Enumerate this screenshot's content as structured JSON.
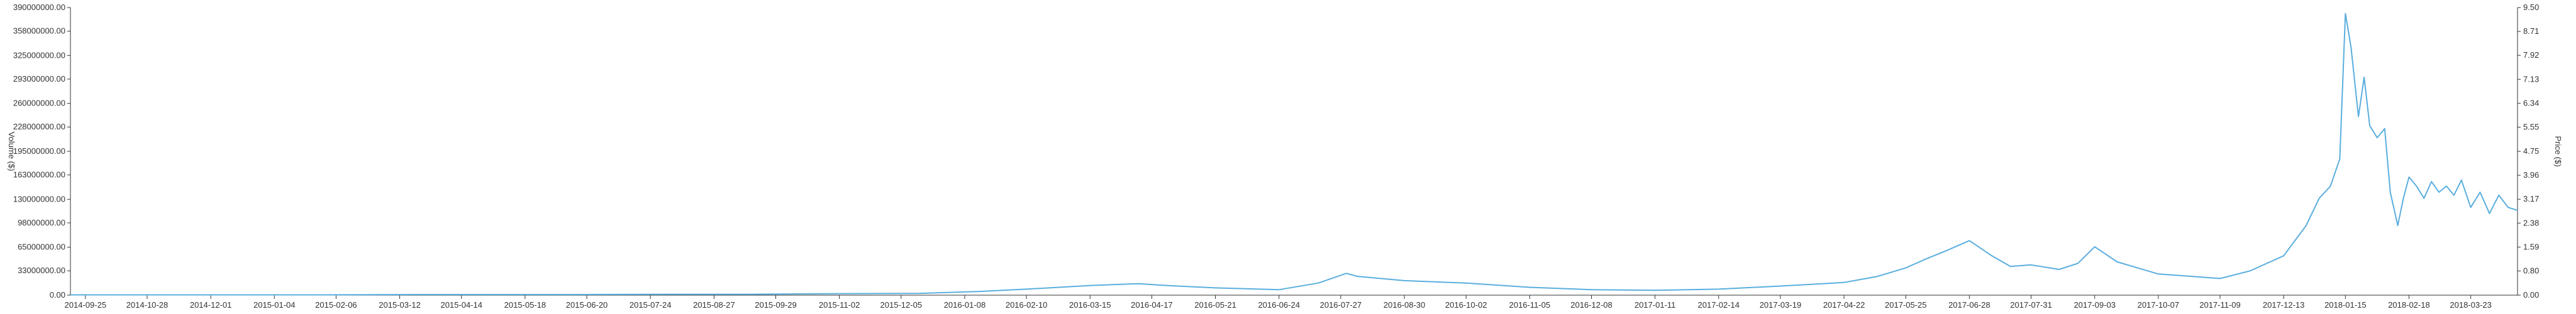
{
  "chart_data": {
    "type": "line",
    "title": "",
    "xlabel": "",
    "ylabel_left": "Volume ($)",
    "ylabel_right": "Price ($)",
    "grid": false,
    "legend": "none",
    "colors": {
      "line": "#5aaede",
      "axis": "#333333"
    },
    "xlim": [
      "2014-09-17",
      "2018-04-17"
    ],
    "ylim_left": [
      0,
      390000000
    ],
    "ylim_right": [
      0,
      9.5
    ],
    "x_ticks": [
      "2014-09-25",
      "2014-10-28",
      "2014-12-01",
      "2015-01-04",
      "2015-02-06",
      "2015-03-12",
      "2015-04-14",
      "2015-05-18",
      "2015-06-20",
      "2015-07-24",
      "2015-08-27",
      "2015-09-29",
      "2015-11-02",
      "2015-12-05",
      "2016-01-08",
      "2016-02-10",
      "2016-03-15",
      "2016-04-17",
      "2016-05-21",
      "2016-06-24",
      "2016-07-27",
      "2016-08-30",
      "2016-10-02",
      "2016-11-05",
      "2016-12-08",
      "2017-01-11",
      "2017-02-14",
      "2017-03-19",
      "2017-04-22",
      "2017-05-25",
      "2017-06-28",
      "2017-07-31",
      "2017-09-03",
      "2017-10-07",
      "2017-11-09",
      "2017-12-13",
      "2018-01-15",
      "2018-02-18",
      "2018-03-23"
    ],
    "y_ticks_left": [
      "390000000.00",
      "358000000.00",
      "325000000.00",
      "293000000.00",
      "260000000.00",
      "228000000.00",
      "195000000.00",
      "163000000.00",
      "130000000.00",
      "98000000.00",
      "65000000.00",
      "33000000.00",
      "0.00"
    ],
    "y_ticks_right": [
      "9.50",
      "8.71",
      "7.92",
      "7.13",
      "6.34",
      "5.55",
      "4.75",
      "3.96",
      "3.17",
      "2.38",
      "1.59",
      "0.80",
      "0.00"
    ],
    "series": [
      {
        "axis": "right",
        "x": [
          "2014-09-17",
          "2014-11-01",
          "2014-12-15",
          "2015-02-01",
          "2015-03-20",
          "2015-05-01",
          "2015-06-15",
          "2015-08-01",
          "2015-09-15",
          "2015-11-01",
          "2015-12-15",
          "2016-01-15",
          "2016-02-10",
          "2016-03-15",
          "2016-04-10",
          "2016-04-25",
          "2016-05-21",
          "2016-06-24",
          "2016-07-15",
          "2016-07-30",
          "2016-08-05",
          "2016-08-30",
          "2016-10-02",
          "2016-11-05",
          "2016-12-08",
          "2017-01-11",
          "2017-02-14",
          "2017-03-19",
          "2017-04-22",
          "2017-05-10",
          "2017-05-25",
          "2017-06-05",
          "2017-06-15",
          "2017-06-28",
          "2017-07-10",
          "2017-07-20",
          "2017-07-31",
          "2017-08-15",
          "2017-08-25",
          "2017-09-03",
          "2017-09-15",
          "2017-10-07",
          "2017-10-25",
          "2017-11-09",
          "2017-11-25",
          "2017-12-13",
          "2017-12-25",
          "2018-01-01",
          "2018-01-07",
          "2018-01-12",
          "2018-01-15",
          "2018-01-18",
          "2018-01-22",
          "2018-01-25",
          "2018-01-28",
          "2018-02-01",
          "2018-02-05",
          "2018-02-08",
          "2018-02-12",
          "2018-02-15",
          "2018-02-18",
          "2018-02-22",
          "2018-02-26",
          "2018-03-02",
          "2018-03-06",
          "2018-03-10",
          "2018-03-14",
          "2018-03-18",
          "2018-03-23",
          "2018-03-28",
          "2018-04-02",
          "2018-04-07",
          "2018-04-12",
          "2018-04-17"
        ],
        "values": [
          0.01,
          0.01,
          0.01,
          0.01,
          0.02,
          0.02,
          0.02,
          0.03,
          0.03,
          0.05,
          0.06,
          0.12,
          0.2,
          0.32,
          0.38,
          0.32,
          0.24,
          0.18,
          0.4,
          0.72,
          0.62,
          0.48,
          0.4,
          0.26,
          0.18,
          0.16,
          0.2,
          0.3,
          0.42,
          0.62,
          0.9,
          1.2,
          1.45,
          1.8,
          1.3,
          0.95,
          1.0,
          0.85,
          1.05,
          1.6,
          1.1,
          0.7,
          0.62,
          0.55,
          0.8,
          1.3,
          2.3,
          3.2,
          3.6,
          4.5,
          9.3,
          8.2,
          5.9,
          7.2,
          5.6,
          5.2,
          5.5,
          3.4,
          2.3,
          3.2,
          3.9,
          3.6,
          3.2,
          3.75,
          3.4,
          3.6,
          3.3,
          3.8,
          2.9,
          3.4,
          2.7,
          3.3,
          2.9,
          2.8
        ]
      }
    ]
  }
}
